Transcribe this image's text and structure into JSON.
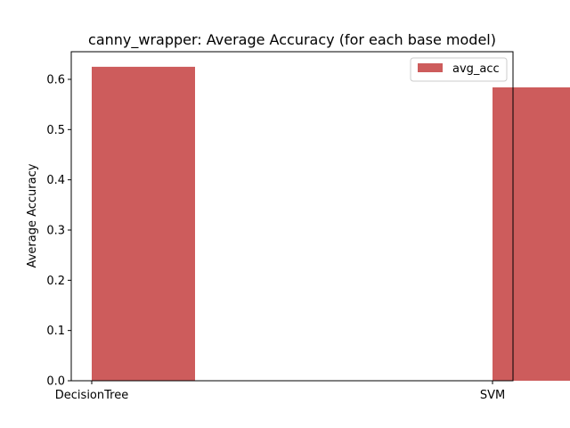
{
  "chart_data": {
    "type": "bar",
    "title": "canny_wrapper: Average Accuracy (for each base model)",
    "xlabel": "",
    "ylabel": "Average Accuracy",
    "categories": [
      "DecisionTree",
      "SVM"
    ],
    "series": [
      {
        "name": "avg_acc",
        "values": [
          0.625,
          0.584
        ],
        "color": "#cd5c5c"
      }
    ],
    "ylim": [
      0,
      0.655
    ],
    "yticks": [
      0.0,
      0.1,
      0.2,
      0.3,
      0.4,
      0.5,
      0.6
    ],
    "ytick_labels": [
      "0.0",
      "0.1",
      "0.2",
      "0.3",
      "0.4",
      "0.5",
      "0.6"
    ],
    "grid": false,
    "legend_position": "top-right"
  }
}
